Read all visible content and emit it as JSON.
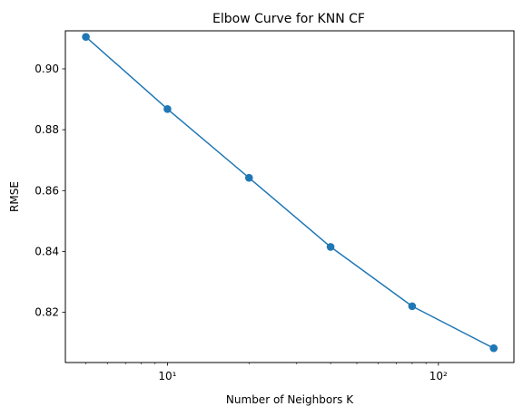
{
  "chart_data": {
    "type": "line",
    "title": "Elbow Curve for KNN CF",
    "xlabel": "Number of Neighbors K",
    "ylabel": "RMSE",
    "xscale": "log",
    "xlim": [
      4.2,
      190
    ],
    "ylim": [
      0.8035,
      0.9125
    ],
    "x_major_ticks": [
      10,
      100
    ],
    "x_tick_labels": [
      "10¹",
      "10²"
    ],
    "y_ticks": [
      0.82,
      0.84,
      0.86,
      0.88,
      0.9
    ],
    "y_tick_labels": [
      "0.82",
      "0.84",
      "0.86",
      "0.88",
      "0.90"
    ],
    "grid": false,
    "marker": "circle",
    "series": [
      {
        "color": "#1f77b4",
        "x": [
          5,
          10,
          20,
          40,
          80,
          160
        ],
        "values": [
          0.9105,
          0.8868,
          0.8642,
          0.8415,
          0.822,
          0.8082
        ]
      }
    ]
  }
}
